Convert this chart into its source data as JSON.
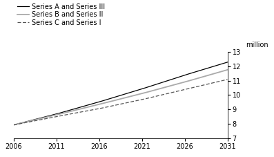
{
  "ylabel": "million",
  "series": {
    "A_III": {
      "label": "Series A and Series III",
      "color": "#000000",
      "linestyle": "solid",
      "linewidth": 0.9,
      "years": [
        2006,
        2011,
        2016,
        2021,
        2026,
        2031
      ],
      "values": [
        7.92,
        8.68,
        9.52,
        10.42,
        11.38,
        12.28
      ]
    },
    "B_II": {
      "label": "Series B and Series II",
      "color": "#aaaaaa",
      "linestyle": "solid",
      "linewidth": 1.3,
      "years": [
        2006,
        2011,
        2016,
        2021,
        2026,
        2031
      ],
      "values": [
        7.92,
        8.62,
        9.35,
        10.1,
        10.9,
        11.75
      ]
    },
    "C_I": {
      "label": "Series C and Series I",
      "color": "#555555",
      "linestyle": "dashed",
      "linewidth": 0.9,
      "dashes": [
        4,
        2
      ],
      "years": [
        2006,
        2011,
        2016,
        2021,
        2026,
        2031
      ],
      "values": [
        7.92,
        8.5,
        9.05,
        9.68,
        10.38,
        11.08
      ]
    }
  },
  "xlim": [
    2006,
    2031
  ],
  "ylim": [
    7,
    13
  ],
  "xticks": [
    2006,
    2011,
    2016,
    2021,
    2026,
    2031
  ],
  "yticks": [
    7,
    8,
    9,
    10,
    11,
    12,
    13
  ],
  "background_color": "#ffffff",
  "tick_fontsize": 7,
  "legend_fontsize": 7,
  "ylabel_fontsize": 7
}
